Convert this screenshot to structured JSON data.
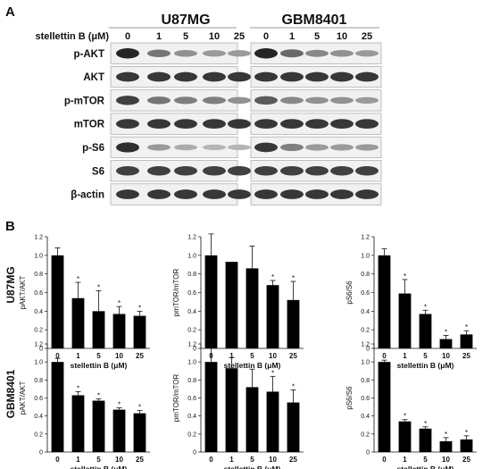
{
  "figure": {
    "panel_a_letter": "A",
    "panel_b_letter": "B",
    "treatment_label": "stellettin B (μM)",
    "concentrations": [
      "0",
      "1",
      "5",
      "10",
      "25"
    ],
    "cell_lines": [
      "U87MG",
      "GBM8401"
    ],
    "blot_rows": [
      "p-AKT",
      "AKT",
      "p-mTOR",
      "mTOR",
      "p-S6",
      "S6",
      "β-actin"
    ],
    "significance_mark": "*"
  },
  "blot_intensity": {
    "U87MG": {
      "p-AKT": [
        1.0,
        0.55,
        0.4,
        0.36,
        0.34
      ],
      "AKT": [
        0.9,
        0.9,
        0.9,
        0.9,
        0.9
      ],
      "p-mTOR": [
        0.85,
        0.55,
        0.5,
        0.5,
        0.4
      ],
      "mTOR": [
        0.9,
        0.9,
        0.9,
        0.9,
        0.9
      ],
      "p-S6": [
        0.95,
        0.35,
        0.25,
        0.2,
        0.2
      ],
      "S6": [
        0.85,
        0.85,
        0.85,
        0.85,
        0.85
      ],
      "β-actin": [
        0.9,
        0.9,
        0.9,
        0.9,
        0.9
      ]
    },
    "GBM8401": {
      "p-AKT": [
        1.0,
        0.62,
        0.45,
        0.4,
        0.35
      ],
      "AKT": [
        0.9,
        0.9,
        0.9,
        0.9,
        0.9
      ],
      "p-mTOR": [
        0.7,
        0.45,
        0.4,
        0.4,
        0.35
      ],
      "mTOR": [
        0.9,
        0.9,
        0.9,
        0.9,
        0.9
      ],
      "p-S6": [
        0.9,
        0.5,
        0.35,
        0.35,
        0.35
      ],
      "S6": [
        0.85,
        0.85,
        0.85,
        0.85,
        0.85
      ],
      "β-actin": [
        0.9,
        0.9,
        0.9,
        0.9,
        0.9
      ]
    }
  },
  "chart_data": [
    {
      "type": "bar",
      "cell_line": "U87MG",
      "categories": [
        "0",
        "1",
        "5",
        "10",
        "25"
      ],
      "values": [
        1.0,
        0.54,
        0.4,
        0.37,
        0.35
      ],
      "errors": [
        0.08,
        0.17,
        0.22,
        0.08,
        0.05
      ],
      "significant": [
        false,
        true,
        true,
        true,
        true
      ],
      "ylabel": "pAKT/AKT",
      "xlabel": "stellettin B (μM)",
      "ylim": [
        0,
        1.2
      ],
      "yticks": [
        "0",
        "0.2",
        "0.4",
        "0.6",
        "0.8",
        "1.0",
        "1.2"
      ]
    },
    {
      "type": "bar",
      "cell_line": "U87MG",
      "categories": [
        "0",
        "1",
        "5",
        "10",
        "25"
      ],
      "values": [
        1.0,
        0.93,
        0.86,
        0.68,
        0.52
      ],
      "errors": [
        0.23,
        0.0,
        0.24,
        0.05,
        0.2
      ],
      "significant": [
        false,
        false,
        false,
        true,
        true
      ],
      "ylabel": "pmTOR/mTOR",
      "xlabel": "stellettin B (μM)",
      "ylim": [
        0,
        1.2
      ],
      "yticks": [
        "0",
        "0.2",
        "0.4",
        "0.6",
        "0.8",
        "1.0",
        "1.2"
      ]
    },
    {
      "type": "bar",
      "cell_line": "U87MG",
      "categories": [
        "0",
        "1",
        "5",
        "10",
        "25"
      ],
      "values": [
        1.0,
        0.59,
        0.37,
        0.1,
        0.15
      ],
      "errors": [
        0.07,
        0.15,
        0.04,
        0.04,
        0.04
      ],
      "significant": [
        false,
        true,
        true,
        true,
        true
      ],
      "ylabel": "pS6/S6",
      "xlabel": "stellettin B (μM)",
      "ylim": [
        0,
        1.2
      ],
      "yticks": [
        "0",
        "0.2",
        "0.4",
        "0.6",
        "0.8",
        "1.0",
        "1.2"
      ]
    },
    {
      "type": "bar",
      "cell_line": "GBM8401",
      "categories": [
        "0",
        "1",
        "5",
        "10",
        "25"
      ],
      "values": [
        1.0,
        0.63,
        0.57,
        0.47,
        0.43
      ],
      "errors": [
        0.04,
        0.04,
        0.02,
        0.02,
        0.03
      ],
      "significant": [
        false,
        true,
        true,
        true,
        true
      ],
      "ylabel": "pAKT/AKT",
      "xlabel": "stellettin B (μM)",
      "ylim": [
        0,
        1.2
      ],
      "yticks": [
        "0",
        "0.2",
        "0.4",
        "0.6",
        "0.8",
        "1.0",
        "1.2"
      ]
    },
    {
      "type": "bar",
      "cell_line": "GBM8401",
      "categories": [
        "0",
        "1",
        "5",
        "10",
        "25"
      ],
      "values": [
        1.0,
        0.93,
        0.72,
        0.67,
        0.55
      ],
      "errors": [
        0.2,
        0.12,
        0.2,
        0.17,
        0.14
      ],
      "significant": [
        false,
        false,
        false,
        true,
        true
      ],
      "ylabel": "pmTOR/mTOR",
      "xlabel": "stellettin B (μM)",
      "ylim": [
        0,
        1.2
      ],
      "yticks": [
        "0",
        "0.2",
        "0.4",
        "0.6",
        "0.8",
        "1.0",
        "1.2"
      ]
    },
    {
      "type": "bar",
      "cell_line": "GBM8401",
      "categories": [
        "0",
        "1",
        "5",
        "10",
        "25"
      ],
      "values": [
        1.0,
        0.34,
        0.26,
        0.12,
        0.14
      ],
      "errors": [
        0.02,
        0.02,
        0.02,
        0.04,
        0.04
      ],
      "significant": [
        false,
        true,
        true,
        true,
        true
      ],
      "ylabel": "pS6/S6",
      "xlabel": "stellettin B (μM)",
      "ylim": [
        0,
        1.2
      ],
      "yticks": [
        "0",
        "0.2",
        "0.4",
        "0.6",
        "0.8",
        "1.0",
        "1.2"
      ]
    }
  ]
}
